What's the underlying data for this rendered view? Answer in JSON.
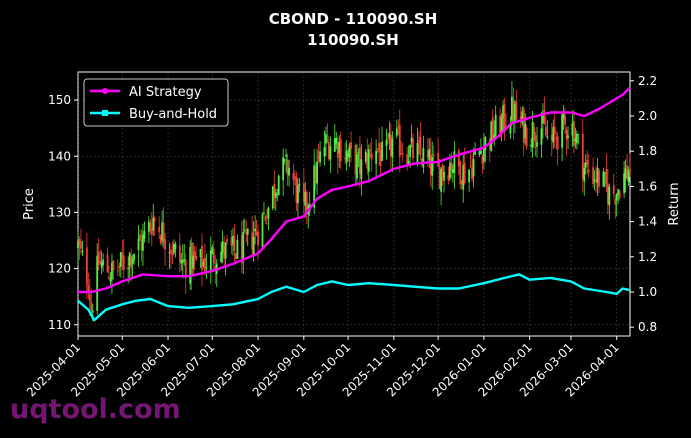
{
  "chart_data": {
    "type": "line",
    "title": "CBOND - 110090.SH",
    "subtitle": "110090.SH",
    "xlabel": "",
    "ylabel": "Price",
    "y2label": "Return",
    "x_ticks": [
      "2025-04-01",
      "2025-05-01",
      "2025-06-01",
      "2025-07-01",
      "2025-08-01",
      "2025-09-01",
      "2025-10-01",
      "2025-11-01",
      "2025-12-01",
      "2026-01-01",
      "2026-02-01",
      "2026-03-01",
      "2026-04-01"
    ],
    "x_range": [
      "2025-04-01",
      "2026-04-10"
    ],
    "ylim": [
      108,
      155
    ],
    "y2lim": [
      0.75,
      2.25
    ],
    "y_ticks": [
      110,
      120,
      130,
      140,
      150
    ],
    "y2_ticks": [
      0.8,
      1.0,
      1.2,
      1.4,
      1.6,
      1.8,
      2.0,
      2.2
    ],
    "grid": true,
    "legend_position": "top-left",
    "candlestick_anchors": [
      [
        "2025-04-01",
        124
      ],
      [
        "2025-04-08",
        118
      ],
      [
        "2025-04-10",
        113
      ],
      [
        "2025-04-15",
        121
      ],
      [
        "2025-04-25",
        119
      ],
      [
        "2025-05-05",
        122
      ],
      [
        "2025-05-15",
        125
      ],
      [
        "2025-05-22",
        129
      ],
      [
        "2025-06-01",
        125
      ],
      [
        "2025-06-10",
        121
      ],
      [
        "2025-06-25",
        121
      ],
      [
        "2025-07-05",
        123
      ],
      [
        "2025-07-20",
        123
      ],
      [
        "2025-08-01",
        127
      ],
      [
        "2025-08-08",
        131
      ],
      [
        "2025-08-15",
        137
      ],
      [
        "2025-08-22",
        138
      ],
      [
        "2025-08-28",
        133
      ],
      [
        "2025-09-01",
        130
      ],
      [
        "2025-09-08",
        136
      ],
      [
        "2025-09-15",
        142
      ],
      [
        "2025-09-22",
        143
      ],
      [
        "2025-10-01",
        140
      ],
      [
        "2025-10-10",
        138
      ],
      [
        "2025-10-20",
        142
      ],
      [
        "2025-10-25",
        139
      ],
      [
        "2025-11-01",
        143
      ],
      [
        "2025-11-10",
        141
      ],
      [
        "2025-11-20",
        140
      ],
      [
        "2025-12-01",
        137
      ],
      [
        "2025-12-10",
        139
      ],
      [
        "2025-12-20",
        137
      ],
      [
        "2026-01-01",
        142
      ],
      [
        "2026-01-10",
        145
      ],
      [
        "2026-01-20",
        148
      ],
      [
        "2026-01-25",
        146
      ],
      [
        "2026-02-01",
        144
      ],
      [
        "2026-02-08",
        146
      ],
      [
        "2026-02-15",
        142
      ],
      [
        "2026-02-20",
        144
      ],
      [
        "2026-03-01",
        146
      ],
      [
        "2026-03-05",
        143
      ],
      [
        "2026-03-10",
        138
      ],
      [
        "2026-03-20",
        136
      ],
      [
        "2026-03-28",
        133
      ],
      [
        "2026-04-01",
        134
      ],
      [
        "2026-04-05",
        136
      ],
      [
        "2026-04-10",
        138
      ]
    ],
    "candle_up_color": "#55ee44",
    "candle_down_color": "#ee4433",
    "series": [
      {
        "name": "AI Strategy",
        "color": "#ff00ff",
        "marker": "circle",
        "axis": "right",
        "points": [
          [
            "2025-04-01",
            1.0
          ],
          [
            "2025-04-10",
            1.0
          ],
          [
            "2025-04-20",
            1.02
          ],
          [
            "2025-05-01",
            1.06
          ],
          [
            "2025-05-15",
            1.1
          ],
          [
            "2025-06-01",
            1.09
          ],
          [
            "2025-06-15",
            1.09
          ],
          [
            "2025-07-01",
            1.12
          ],
          [
            "2025-07-15",
            1.16
          ],
          [
            "2025-08-01",
            1.22
          ],
          [
            "2025-08-10",
            1.3
          ],
          [
            "2025-08-20",
            1.4
          ],
          [
            "2025-09-01",
            1.43
          ],
          [
            "2025-09-10",
            1.53
          ],
          [
            "2025-09-20",
            1.58
          ],
          [
            "2025-10-01",
            1.6
          ],
          [
            "2025-10-15",
            1.63
          ],
          [
            "2025-11-01",
            1.7
          ],
          [
            "2025-11-15",
            1.73
          ],
          [
            "2025-12-01",
            1.74
          ],
          [
            "2025-12-15",
            1.78
          ],
          [
            "2026-01-01",
            1.82
          ],
          [
            "2026-01-10",
            1.88
          ],
          [
            "2026-01-20",
            1.96
          ],
          [
            "2026-02-01",
            1.99
          ],
          [
            "2026-02-15",
            2.02
          ],
          [
            "2026-03-01",
            2.02
          ],
          [
            "2026-03-10",
            2.0
          ],
          [
            "2026-03-20",
            2.04
          ],
          [
            "2026-04-01",
            2.1
          ],
          [
            "2026-04-05",
            2.12
          ],
          [
            "2026-04-10",
            2.16
          ]
        ]
      },
      {
        "name": "Buy-and-Hold",
        "color": "#00ffff",
        "marker": "square",
        "axis": "right",
        "points": [
          [
            "2025-04-01",
            0.95
          ],
          [
            "2025-04-08",
            0.9
          ],
          [
            "2025-04-12",
            0.84
          ],
          [
            "2025-04-20",
            0.9
          ],
          [
            "2025-05-01",
            0.93
          ],
          [
            "2025-05-10",
            0.95
          ],
          [
            "2025-05-20",
            0.96
          ],
          [
            "2025-06-01",
            0.92
          ],
          [
            "2025-06-15",
            0.91
          ],
          [
            "2025-07-01",
            0.92
          ],
          [
            "2025-07-15",
            0.93
          ],
          [
            "2025-08-01",
            0.96
          ],
          [
            "2025-08-10",
            1.0
          ],
          [
            "2025-08-20",
            1.03
          ],
          [
            "2025-09-01",
            1.0
          ],
          [
            "2025-09-10",
            1.04
          ],
          [
            "2025-09-20",
            1.06
          ],
          [
            "2025-10-01",
            1.04
          ],
          [
            "2025-10-15",
            1.05
          ],
          [
            "2025-11-01",
            1.04
          ],
          [
            "2025-11-15",
            1.03
          ],
          [
            "2025-12-01",
            1.02
          ],
          [
            "2025-12-15",
            1.02
          ],
          [
            "2026-01-01",
            1.05
          ],
          [
            "2026-01-15",
            1.08
          ],
          [
            "2026-01-25",
            1.1
          ],
          [
            "2026-02-01",
            1.07
          ],
          [
            "2026-02-15",
            1.08
          ],
          [
            "2026-03-01",
            1.06
          ],
          [
            "2026-03-10",
            1.02
          ],
          [
            "2026-03-25",
            1.0
          ],
          [
            "2026-04-01",
            0.99
          ],
          [
            "2026-04-05",
            1.02
          ],
          [
            "2026-04-10",
            1.01
          ]
        ]
      }
    ]
  },
  "watermark": "uqtool.com"
}
